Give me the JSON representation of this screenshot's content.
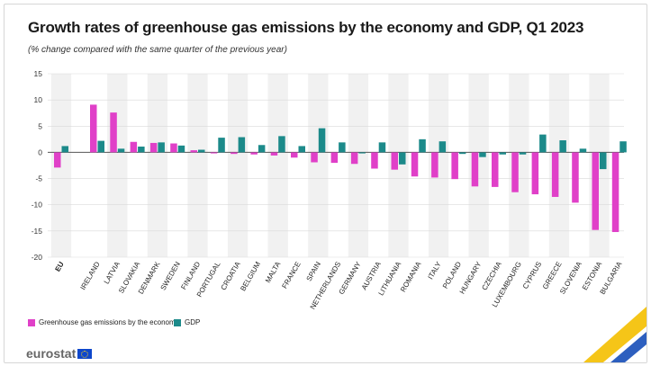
{
  "header": {
    "title": "Growth rates of greenhouse gas emissions by the economy and GDP, Q1 2023",
    "subtitle": "(% change compared with the same quarter of the previous year)"
  },
  "legend": {
    "ghg": "Greenhouse gas emissions by the economy",
    "gdp": "GDP"
  },
  "branding": {
    "logo_text": "eurostat"
  },
  "colors": {
    "ghg": "#e040c8",
    "gdp": "#1c8a8a",
    "band": "#f1f1f1",
    "grid": "#d9d9d9",
    "axis": "#555555"
  },
  "chart_data": {
    "type": "bar",
    "title": "Growth rates of greenhouse gas emissions by the economy and GDP, Q1 2023",
    "ylim": [
      -20,
      15
    ],
    "yticks": [
      15,
      10,
      5,
      0,
      -5,
      -10,
      -15,
      -20
    ],
    "categories": [
      "EU",
      "IRELAND",
      "LATVIA",
      "SLOVAKIA",
      "DENMARK",
      "SWEDEN",
      "FINLAND",
      "PORTUGAL",
      "CROATIA",
      "BELGIUM",
      "MALTA",
      "FRANCE",
      "SPAIN",
      "NETHERLANDS",
      "GERMANY",
      "AUSTRIA",
      "LITHUANIA",
      "ROMANIA",
      "ITALY",
      "POLAND",
      "HUNGARY",
      "CZECHIA",
      "LUXEMBOURG",
      "CYPRUS",
      "GREECE",
      "SLOVENIA",
      "ESTONIA",
      "BULGARIA"
    ],
    "series": [
      {
        "name": "Greenhouse gas emissions by the economy",
        "values": [
          -2.9,
          9.1,
          7.6,
          2.0,
          1.8,
          1.7,
          0.4,
          -0.2,
          -0.3,
          -0.4,
          -0.6,
          -1.0,
          -1.9,
          -2.0,
          -2.2,
          -3.1,
          -3.3,
          -4.6,
          -4.8,
          -5.1,
          -6.5,
          -6.6,
          -7.6,
          -8.0,
          -8.5,
          -9.6,
          -14.8,
          -15.2
        ]
      },
      {
        "name": "GDP",
        "values": [
          1.2,
          2.2,
          0.7,
          1.1,
          1.9,
          1.3,
          0.5,
          2.8,
          2.9,
          1.4,
          3.1,
          1.2,
          4.6,
          1.9,
          -0.2,
          1.9,
          -2.3,
          2.5,
          2.1,
          -0.3,
          -0.9,
          -0.4,
          -0.4,
          3.4,
          2.3,
          0.7,
          -3.2,
          2.1
        ]
      }
    ]
  }
}
